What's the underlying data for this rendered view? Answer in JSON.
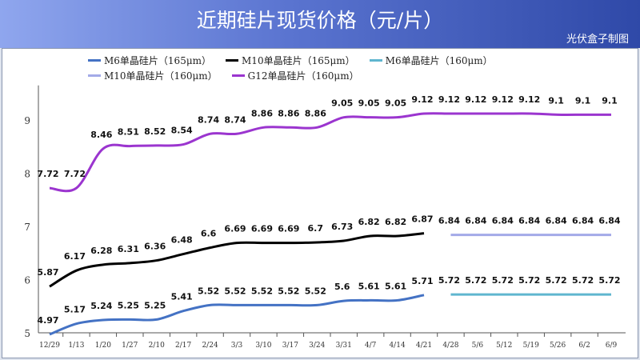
{
  "header": {
    "title": "近期硅片现货价格（元/片）",
    "credit": "光伏盒子制图"
  },
  "chart_data": {
    "type": "line",
    "title": "近期硅片现货价格（元/片）",
    "categories": [
      "12/29",
      "1/13",
      "1/20",
      "1/27",
      "2/10",
      "2/17",
      "2/24",
      "3/3",
      "3/10",
      "3/17",
      "3/24",
      "3/31",
      "4/7",
      "4/14",
      "4/21",
      "4/28",
      "5/6",
      "5/12",
      "5/19",
      "5/26",
      "6/2",
      "6/9"
    ],
    "ylim": [
      5,
      9.5
    ],
    "yticks": [
      5,
      6,
      7,
      8,
      9
    ],
    "grid": false,
    "legend_position": "top",
    "series": [
      {
        "name": "M6单晶硅片（165μm）",
        "color": "#4472c4",
        "values": [
          4.97,
          5.17,
          5.24,
          5.25,
          5.25,
          5.41,
          5.52,
          5.52,
          5.52,
          5.52,
          5.52,
          5.6,
          5.61,
          5.61,
          5.71,
          null,
          null,
          null,
          null,
          null,
          null,
          null
        ]
      },
      {
        "name": "M10单晶硅片（165μm）",
        "color": "#000000",
        "values": [
          5.87,
          6.17,
          6.28,
          6.31,
          6.36,
          6.48,
          6.6,
          6.69,
          6.69,
          6.69,
          6.7,
          6.73,
          6.82,
          6.82,
          6.87,
          null,
          null,
          null,
          null,
          null,
          null,
          null
        ]
      },
      {
        "name": "M6单晶硅片（160μm）",
        "color": "#5fb6cf",
        "values": [
          null,
          null,
          null,
          null,
          null,
          null,
          null,
          null,
          null,
          null,
          null,
          null,
          null,
          null,
          null,
          5.72,
          5.72,
          5.72,
          5.72,
          5.72,
          5.72,
          5.72
        ]
      },
      {
        "name": "M10单晶硅片（160μm）",
        "color": "#a3aae8",
        "values": [
          null,
          null,
          null,
          null,
          null,
          null,
          null,
          null,
          null,
          null,
          null,
          null,
          null,
          null,
          null,
          6.84,
          6.84,
          6.84,
          6.84,
          6.84,
          6.84,
          6.84
        ]
      },
      {
        "name": "G12单晶硅片（160μm）",
        "color": "#9b35cf",
        "values": [
          7.72,
          7.72,
          8.46,
          8.51,
          8.52,
          8.54,
          8.74,
          8.74,
          8.86,
          8.86,
          8.86,
          9.05,
          9.05,
          9.05,
          9.12,
          9.12,
          9.12,
          9.12,
          9.12,
          9.1,
          9.1,
          9.1
        ]
      }
    ]
  }
}
